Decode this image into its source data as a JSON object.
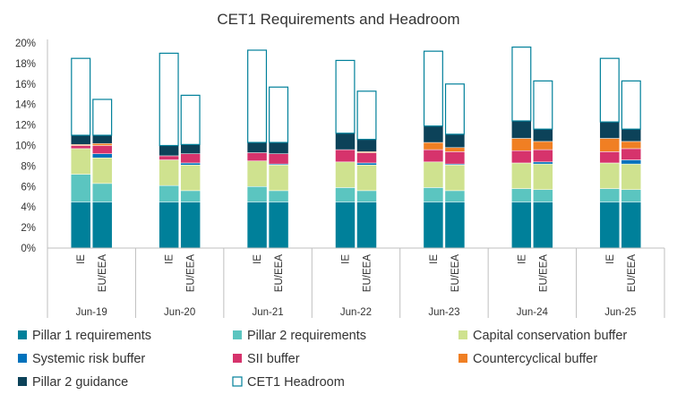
{
  "chart_data": {
    "type": "bar",
    "stacked": true,
    "title": "CET1 Requirements and Headroom",
    "xlabel": "",
    "ylabel": "",
    "ylim": [
      0,
      20
    ],
    "y_ticks": [
      "0%",
      "2%",
      "4%",
      "6%",
      "8%",
      "10%",
      "12%",
      "14%",
      "16%",
      "18%",
      "20%"
    ],
    "grid": false,
    "legend_position": "bottom",
    "groups": [
      "Jun-19",
      "Jun-20",
      "Jun-21",
      "Jun-22",
      "Jun-23",
      "Jun-24",
      "Jun-25"
    ],
    "bar_labels": [
      "IE",
      "EU/EEA"
    ],
    "categories": [
      "IE Jun-19",
      "EU/EEA Jun-19",
      "IE Jun-20",
      "EU/EEA Jun-20",
      "IE Jun-21",
      "EU/EEA Jun-21",
      "IE Jun-22",
      "EU/EEA Jun-22",
      "IE Jun-23",
      "EU/EEA Jun-23",
      "IE Jun-24",
      "EU/EEA Jun-24",
      "IE Jun-25",
      "EU/EEA Jun-25"
    ],
    "series": [
      {
        "name": "Pillar 1 requirements",
        "color": "#00809a",
        "hollow": false,
        "values": [
          4.5,
          4.5,
          4.5,
          4.5,
          4.5,
          4.5,
          4.5,
          4.5,
          4.5,
          4.5,
          4.5,
          4.5,
          4.5,
          4.5
        ]
      },
      {
        "name": "Pillar 2 requirements",
        "color": "#5bc5c0",
        "hollow": false,
        "values": [
          2.7,
          1.8,
          1.6,
          1.1,
          1.5,
          1.1,
          1.4,
          1.1,
          1.4,
          1.1,
          1.3,
          1.2,
          1.3,
          1.2
        ]
      },
      {
        "name": "Capital conservation buffer",
        "color": "#cfe28f",
        "hollow": false,
        "values": [
          2.5,
          2.5,
          2.5,
          2.5,
          2.5,
          2.5,
          2.5,
          2.5,
          2.5,
          2.5,
          2.5,
          2.5,
          2.5,
          2.5
        ]
      },
      {
        "name": "Systemic risk buffer",
        "color": "#0072bc",
        "hollow": false,
        "values": [
          0.0,
          0.4,
          0.0,
          0.2,
          0.0,
          0.1,
          0.0,
          0.2,
          0.0,
          0.1,
          0.0,
          0.2,
          0.0,
          0.4
        ]
      },
      {
        "name": "SII buffer",
        "color": "#d6336c",
        "hollow": false,
        "values": [
          0.3,
          0.8,
          0.4,
          0.9,
          0.8,
          1.0,
          1.2,
          1.0,
          1.2,
          1.2,
          1.2,
          1.2,
          1.1,
          1.1
        ]
      },
      {
        "name": "Countercyclical buffer",
        "color": "#f07f23",
        "hollow": false,
        "values": [
          0.1,
          0.2,
          0.0,
          0.0,
          0.0,
          0.0,
          0.0,
          0.1,
          0.7,
          0.4,
          1.2,
          0.8,
          1.3,
          0.7
        ]
      },
      {
        "name": "Pillar 2 guidance",
        "color": "#0c4259",
        "hollow": false,
        "values": [
          0.9,
          0.8,
          1.0,
          0.9,
          1.0,
          1.1,
          1.6,
          1.2,
          1.6,
          1.3,
          1.7,
          1.2,
          1.6,
          1.2
        ]
      },
      {
        "name": "CET1 Headroom",
        "color": "#00809a",
        "hollow": true,
        "values": [
          7.5,
          3.5,
          9.0,
          4.8,
          9.0,
          5.4,
          7.1,
          4.7,
          7.3,
          4.9,
          7.2,
          4.7,
          6.2,
          4.7
        ]
      }
    ]
  }
}
